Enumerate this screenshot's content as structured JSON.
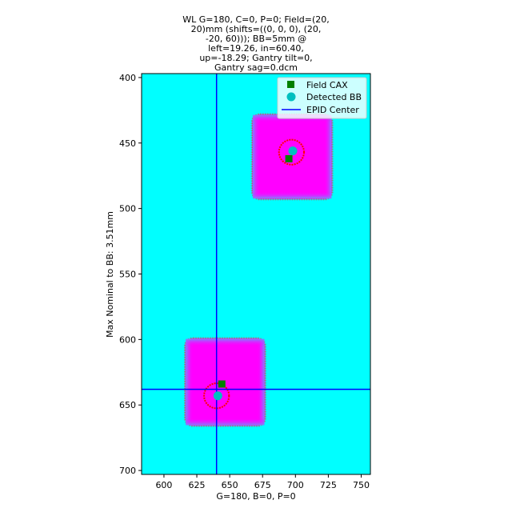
{
  "chart_data": {
    "type": "scatter",
    "title_lines": [
      "WL G=180, C=0, P=0; Field=(20,",
      "20)mm (shifts=((0, 0, 0), (20,",
      "-20, 60))); BB=5mm @",
      "left=19.26, in=60.40,",
      "up=-18.29; Gantry tilt=0,",
      "Gantry sag=0.dcm"
    ],
    "xlabel": "G=180, B=0, P=0",
    "ylabel": "Max Nominal to BB: 3.51mm",
    "xlim": [
      583,
      757
    ],
    "ylim": [
      703,
      397
    ],
    "y_inverted": true,
    "x_ticks": [
      600,
      625,
      650,
      675,
      700,
      725,
      750
    ],
    "y_ticks": [
      400,
      450,
      500,
      550,
      600,
      650,
      700
    ],
    "x_tick_labels": [
      "600",
      "625",
      "650",
      "675",
      "700",
      "725",
      "750"
    ],
    "y_tick_labels": [
      "400",
      "450",
      "500",
      "550",
      "600",
      "650",
      "700"
    ],
    "grid": false,
    "legend_position": "upper-right",
    "background_color": "#00ffff",
    "field_color": "#ff00ff",
    "field_edge_color": "#8080ff",
    "field_outline_color": "#888888",
    "bb_circle_color": "#ff0000",
    "fields": [
      {
        "x_range": [
          667,
          728
        ],
        "y_range": [
          428,
          493
        ]
      },
      {
        "x_range": [
          616,
          677
        ],
        "y_range": [
          599,
          666
        ]
      }
    ],
    "series": [
      {
        "name": "Field CAX",
        "marker": "square",
        "color": "#008000",
        "points": [
          [
            695,
            462
          ],
          [
            644,
            634
          ]
        ]
      },
      {
        "name": "Detected BB",
        "marker": "circle",
        "color": "#00bfbf",
        "points": [
          [
            698,
            456
          ],
          [
            641,
            643
          ]
        ]
      },
      {
        "name": "EPID Center",
        "marker": "line",
        "color": "#0000ff",
        "points": [
          [
            640,
            638
          ]
        ]
      }
    ],
    "bb_outlines": [
      {
        "x": 697,
        "y": 457,
        "radius": 9.5
      },
      {
        "x": 640,
        "y": 643,
        "radius": 9.5
      }
    ]
  }
}
